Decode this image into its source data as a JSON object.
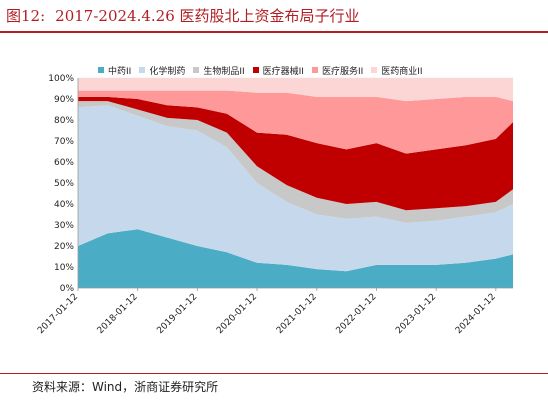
{
  "header": {
    "figure_number": "图12:",
    "title": "2017-2024.4.26 医药股北上资金布局子行业"
  },
  "source": "资料来源：Wind，浙商证券研究所",
  "chart_data": {
    "type": "area",
    "stacked": true,
    "percent": true,
    "x": [
      "2017-01-12",
      "2017-07-12",
      "2018-01-12",
      "2018-07-12",
      "2019-01-12",
      "2019-07-12",
      "2020-01-12",
      "2020-07-12",
      "2021-01-12",
      "2021-07-12",
      "2022-01-12",
      "2022-07-12",
      "2023-01-12",
      "2023-07-12",
      "2024-01-12",
      "2024-04-26"
    ],
    "x_tick_labels": [
      "2017-01-12",
      "2018-01-12",
      "2019-01-12",
      "2020-01-12",
      "2021-01-12",
      "2022-01-12",
      "2023-01-12",
      "2024-01-12"
    ],
    "ylim": [
      0,
      100
    ],
    "y_ticks": [
      "0%",
      "10%",
      "20%",
      "30%",
      "40%",
      "50%",
      "60%",
      "70%",
      "80%",
      "90%",
      "100%"
    ],
    "legend_position": "top",
    "series": [
      {
        "name": "中药II",
        "color": "#4bacc6",
        "values": [
          20,
          26,
          28,
          24,
          20,
          17,
          12,
          11,
          9,
          8,
          11,
          11,
          11,
          12,
          14,
          16
        ]
      },
      {
        "name": "化学制药",
        "color": "#c6d9ec",
        "values": [
          66,
          61,
          54,
          53,
          55,
          50,
          38,
          30,
          26,
          25,
          23,
          20,
          21,
          22,
          22,
          24
        ]
      },
      {
        "name": "生物制品II",
        "color": "#c8c8c8",
        "values": [
          3,
          2,
          3,
          4,
          5,
          7,
          8,
          8,
          8,
          7,
          7,
          6,
          6,
          5,
          5,
          7
        ]
      },
      {
        "name": "医疗器械II",
        "color": "#c00000",
        "values": [
          2,
          2,
          5,
          6,
          6,
          9,
          16,
          24,
          26,
          26,
          28,
          27,
          28,
          29,
          30,
          32
        ]
      },
      {
        "name": "医疗服务II",
        "color": "#ff9999",
        "values": [
          3,
          3,
          4,
          7,
          8,
          11,
          19,
          20,
          22,
          25,
          22,
          25,
          24,
          23,
          20,
          10
        ]
      },
      {
        "name": "医药商业II",
        "color": "#fcd5d5",
        "values": [
          6,
          6,
          6,
          6,
          6,
          6,
          7,
          7,
          9,
          9,
          9,
          11,
          10,
          9,
          9,
          11
        ]
      }
    ]
  }
}
